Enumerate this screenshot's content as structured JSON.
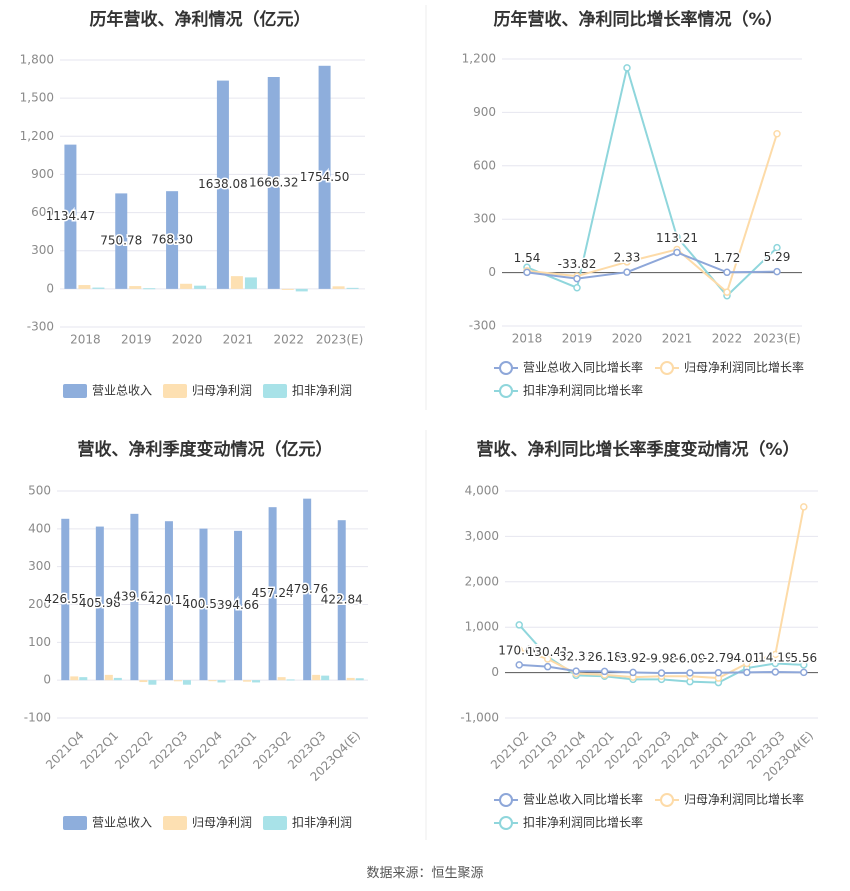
{
  "source_label": "数据来源：恒生聚源",
  "legend_labels": {
    "revenue": "营业总收入",
    "net_profit": "归母净利润",
    "deducted_profit": "扣非净利润",
    "revenue_growth": "营业总收入同比增长率",
    "net_profit_growth": "归母净利润同比增长率",
    "deducted_profit_growth": "扣非净利润同比增长率"
  },
  "colors": {
    "revenue": "#8eaedc",
    "net_profit": "#fde0b2",
    "deducted_profit": "#a8e2e8",
    "revenue_line": "#8ea7d9",
    "net_profit_line": "#fddba8",
    "deducted_profit_line": "#8fd6dc",
    "grid": "#e6e6ef",
    "axis_text": "#8a8a8a",
    "title": "#333333"
  },
  "chart_data": [
    {
      "type": "bar",
      "title": "历年营收、净利情况（亿元）",
      "categories": [
        "2018",
        "2019",
        "2020",
        "2021",
        "2022",
        "2023(E)"
      ],
      "ylim": [
        -300,
        1800
      ],
      "yticks": [
        -300,
        0,
        300,
        600,
        900,
        1200,
        1500,
        1800
      ],
      "ytick_labels": [
        "-300",
        "0",
        "300",
        "600",
        "900",
        "1,200",
        "1,500",
        "1,800"
      ],
      "series": [
        {
          "name": "营业总收入",
          "values": [
            1134.47,
            750.78,
            768.3,
            1638.08,
            1666.32,
            1754.5
          ],
          "labels": [
            "1134.47",
            "750.78",
            "768.30",
            "1638.08",
            "1666.32",
            "1754.50"
          ]
        },
        {
          "name": "归母净利润",
          "values": [
            30,
            22,
            40,
            100,
            -5,
            20
          ]
        },
        {
          "name": "扣非净利润",
          "values": [
            10,
            5,
            25,
            90,
            -20,
            8
          ]
        }
      ],
      "legend": "bottom",
      "grid": true
    },
    {
      "type": "line",
      "title": "历年营收、净利同比增长率情况（%）",
      "categories": [
        "2018",
        "2019",
        "2020",
        "2021",
        "2022",
        "2023(E)"
      ],
      "ylim": [
        -300,
        1200
      ],
      "yticks": [
        -300,
        0,
        300,
        600,
        900,
        1200
      ],
      "ytick_labels": [
        "-300",
        "0",
        "300",
        "600",
        "900",
        "1,200"
      ],
      "series": [
        {
          "name": "营业总收入同比增长率",
          "values": [
            1.54,
            -33.82,
            2.33,
            113.21,
            1.72,
            5.29
          ],
          "labels": [
            "1.54",
            "-33.82",
            "2.33",
            "113.21",
            "1.72",
            "5.29"
          ]
        },
        {
          "name": "归母净利润同比增长率",
          "values": [
            10,
            -20,
            60,
            130,
            -110,
            780
          ]
        },
        {
          "name": "扣非净利润同比增长率",
          "values": [
            30,
            -85,
            1150,
            200,
            -130,
            140
          ]
        }
      ],
      "legend": "bottom",
      "grid": true
    },
    {
      "type": "bar",
      "title": "营收、净利季度变动情况（亿元）",
      "categories": [
        "2021Q4",
        "2022Q1",
        "2022Q2",
        "2022Q3",
        "2022Q4",
        "2023Q1",
        "2023Q2",
        "2023Q3",
        "2023Q4(E)"
      ],
      "ylim": [
        -100,
        500
      ],
      "yticks": [
        -100,
        0,
        100,
        200,
        300,
        400,
        500
      ],
      "ytick_labels": [
        "-100",
        "0",
        "100",
        "200",
        "300",
        "400",
        "500"
      ],
      "series": [
        {
          "name": "营业总收入",
          "values": [
            426.55,
            405.98,
            439.63,
            420.15,
            400.56,
            394.66,
            457.24,
            479.76,
            422.84
          ],
          "labels": [
            "426.55",
            "405.98",
            "439.63",
            "420.15",
            "400.56",
            "394.66",
            "457.24",
            "479.76",
            "422.84"
          ]
        },
        {
          "name": "归母净利润",
          "values": [
            10,
            14,
            -5,
            -3,
            -2,
            -4,
            8,
            14,
            6
          ]
        },
        {
          "name": "扣非净利润",
          "values": [
            8,
            6,
            -12,
            -12,
            -6,
            -6,
            2,
            12,
            5
          ]
        }
      ],
      "legend": "bottom",
      "grid": true
    },
    {
      "type": "line",
      "title": "营收、净利同比增长率季度变动情况（%）",
      "categories": [
        "2021Q2",
        "2021Q3",
        "2021Q4",
        "2022Q1",
        "2022Q2",
        "2022Q3",
        "2022Q4",
        "2023Q1",
        "2023Q2",
        "2023Q3",
        "2023Q4(E)"
      ],
      "ylim": [
        -1000,
        4000
      ],
      "yticks": [
        -1000,
        0,
        1000,
        2000,
        3000,
        4000
      ],
      "ytick_labels": [
        "-1,000",
        "0",
        "1,000",
        "2,000",
        "3,000",
        "4,000"
      ],
      "series": [
        {
          "name": "营业总收入同比增长率",
          "values": [
            170.66,
            130.41,
            32.35,
            26.18,
            3.92,
            -9.98,
            -6.09,
            -2.79,
            4.01,
            14.19,
            5.56
          ],
          "labels": [
            "170.66",
            "130.41",
            "32.35",
            "26.18",
            "3.92",
            "-9.98",
            "-6.09",
            "-2.79",
            "4.01",
            "14.19",
            "5.56"
          ]
        },
        {
          "name": "归母净利润同比增长率",
          "values": [
            500,
            300,
            -20,
            -50,
            -100,
            -80,
            -80,
            -120,
            200,
            400,
            3650
          ]
        },
        {
          "name": "扣非净利润同比增长率",
          "values": [
            1050,
            350,
            -60,
            -80,
            -150,
            -150,
            -200,
            -220,
            100,
            200,
            170
          ]
        }
      ],
      "legend": "bottom",
      "grid": true
    }
  ]
}
